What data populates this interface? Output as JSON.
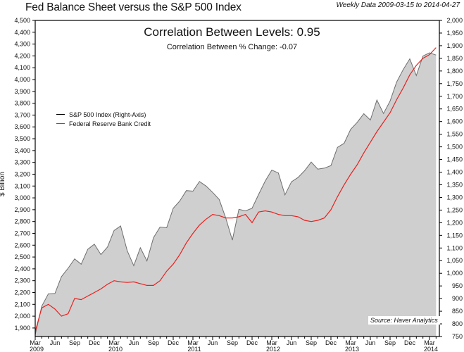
{
  "chart_data": {
    "type": "area",
    "title": "Fed Balance Sheet versus the S&P 500 Index",
    "subtitle": "Weekly Data 2009-03-15 to 2014-04-27",
    "annotations": {
      "primary": "Correlation Between Levels: 0.95",
      "secondary": "Correlation Between % Change: -0.07",
      "source": "Source: Haver Analytics"
    },
    "ylabel": "$ Billion",
    "ylabel_right": "",
    "xlabel": "",
    "grid": false,
    "legend_position": "upper-left",
    "left_axis": {
      "ylim": [
        1828,
        4500
      ],
      "ticks": [
        1900,
        2000,
        2100,
        2200,
        2300,
        2400,
        2500,
        2600,
        2700,
        2800,
        2900,
        3000,
        3100,
        3200,
        3300,
        3400,
        3500,
        3600,
        3700,
        3800,
        3900,
        4000,
        4100,
        4200,
        4300,
        4400,
        4500
      ],
      "tick_labels": [
        "1,900",
        "2,000",
        "2,100",
        "2,200",
        "2,300",
        "2,400",
        "2,500",
        "2,600",
        "2,700",
        "2,800",
        "2,900",
        "3,000",
        "3,100",
        "3,200",
        "3,300",
        "3,400",
        "3,500",
        "3,600",
        "3,700",
        "3,800",
        "3,900",
        "4,000",
        "4,100",
        "4,200",
        "4,300",
        "4,400",
        "4,500"
      ]
    },
    "right_axis": {
      "ylim": [
        750,
        2000
      ],
      "ticks": [
        750,
        800,
        850,
        900,
        950,
        1000,
        1050,
        1100,
        1150,
        1200,
        1250,
        1300,
        1350,
        1400,
        1450,
        1500,
        1550,
        1600,
        1650,
        1700,
        1750,
        1800,
        1850,
        1900,
        1950,
        2000
      ],
      "tick_labels": [
        "750",
        "800",
        "850",
        "900",
        "950",
        "1,000",
        "1,050",
        "1,100",
        "1,150",
        "1,200",
        "1,250",
        "1,300",
        "1,350",
        "1,400",
        "1,450",
        "1,500",
        "1,550",
        "1,600",
        "1,650",
        "1,700",
        "1,750",
        "1,800",
        "1,850",
        "1,900",
        "1,950",
        "2,000"
      ]
    },
    "x_axis": {
      "range": [
        "2009-03",
        "2014-04"
      ],
      "month_labels": [
        "Mar",
        "Jun",
        "Sep",
        "Dec",
        "Mar",
        "Jun",
        "Sep",
        "Dec",
        "Mar",
        "Jun",
        "Sep",
        "Dec",
        "Mar",
        "Jun",
        "Sep",
        "Dec",
        "Mar",
        "Jun",
        "Sep",
        "Dec",
        "Mar"
      ],
      "year_labels": [
        {
          "label": "2009",
          "month_index": 0
        },
        {
          "label": "2010",
          "month_index": 12
        },
        {
          "label": "2011",
          "month_index": 24
        },
        {
          "label": "2012",
          "month_index": 36
        },
        {
          "label": "2013",
          "month_index": 48
        },
        {
          "label": "2014",
          "month_index": 60
        }
      ]
    },
    "x": [
      "2009-03",
      "2009-04",
      "2009-05",
      "2009-06",
      "2009-07",
      "2009-08",
      "2009-09",
      "2009-10",
      "2009-11",
      "2009-12",
      "2010-01",
      "2010-02",
      "2010-03",
      "2010-04",
      "2010-05",
      "2010-06",
      "2010-07",
      "2010-08",
      "2010-09",
      "2010-10",
      "2010-11",
      "2010-12",
      "2011-01",
      "2011-02",
      "2011-03",
      "2011-04",
      "2011-05",
      "2011-06",
      "2011-07",
      "2011-08",
      "2011-09",
      "2011-10",
      "2011-11",
      "2011-12",
      "2012-01",
      "2012-02",
      "2012-03",
      "2012-04",
      "2012-05",
      "2012-06",
      "2012-07",
      "2012-08",
      "2012-09",
      "2012-10",
      "2012-11",
      "2012-12",
      "2013-01",
      "2013-02",
      "2013-03",
      "2013-04",
      "2013-05",
      "2013-06",
      "2013-07",
      "2013-08",
      "2013-09",
      "2013-10",
      "2013-11",
      "2013-12",
      "2014-01",
      "2014-02",
      "2014-03",
      "2014-04"
    ],
    "series": [
      {
        "name": "S&P 500 Index (Right-Axis)",
        "axis": "right",
        "style": "area",
        "line_color": "#6e6e6e",
        "fill_color": "#cfcfcf",
        "values": [
          757,
          870,
          919,
          920,
          987,
          1020,
          1057,
          1036,
          1095,
          1115,
          1074,
          1104,
          1169,
          1187,
          1089,
          1030,
          1101,
          1049,
          1141,
          1183,
          1180,
          1257,
          1286,
          1327,
          1325,
          1363,
          1345,
          1320,
          1292,
          1218,
          1131,
          1253,
          1247,
          1257,
          1312,
          1365,
          1408,
          1397,
          1310,
          1362,
          1379,
          1406,
          1440,
          1412,
          1416,
          1426,
          1498,
          1514,
          1569,
          1597,
          1631,
          1606,
          1685,
          1632,
          1681,
          1756,
          1806,
          1848,
          1782,
          1859,
          1872,
          1863
        ]
      },
      {
        "name": "Federal Reserve Bank Credit",
        "axis": "left",
        "style": "line",
        "line_color": "#e8201e",
        "values": [
          1870,
          2070,
          2100,
          2060,
          2000,
          2020,
          2150,
          2140,
          2170,
          2200,
          2230,
          2270,
          2300,
          2290,
          2285,
          2290,
          2275,
          2260,
          2260,
          2300,
          2380,
          2440,
          2520,
          2620,
          2700,
          2770,
          2820,
          2860,
          2850,
          2830,
          2830,
          2840,
          2860,
          2790,
          2880,
          2890,
          2880,
          2860,
          2850,
          2850,
          2840,
          2810,
          2800,
          2810,
          2830,
          2900,
          3010,
          3110,
          3200,
          3280,
          3380,
          3470,
          3560,
          3640,
          3720,
          3830,
          3930,
          4040,
          4120,
          4180,
          4210,
          4270
        ]
      }
    ]
  }
}
